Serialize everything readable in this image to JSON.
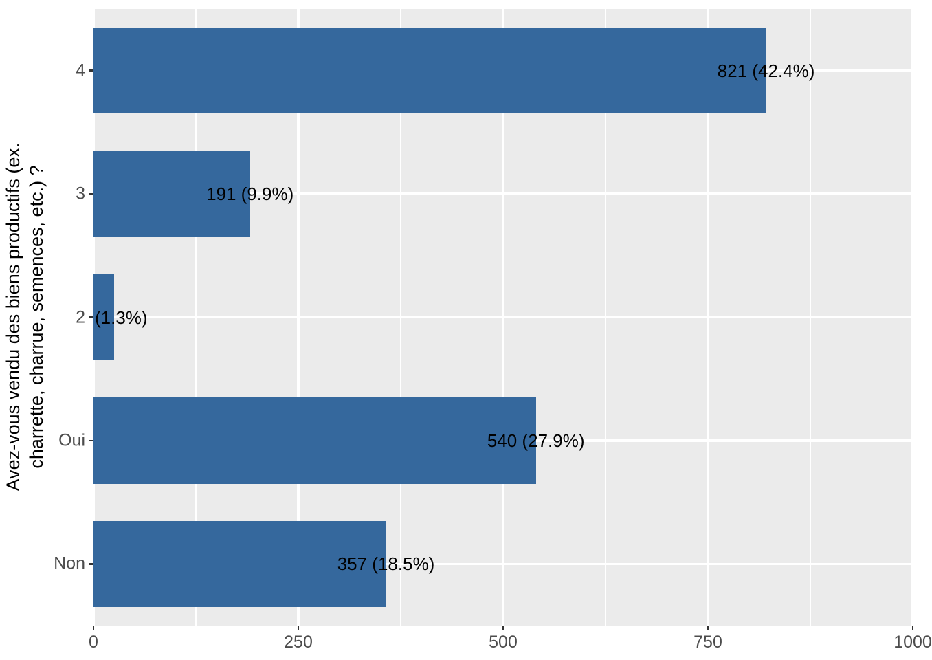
{
  "chart_data": {
    "type": "bar",
    "orientation": "horizontal",
    "title": "",
    "xlabel": "",
    "ylabel_lines": [
      "Avez-vous vendu des biens productifs (ex.",
      "charrette, charrue, semences, etc.) ?"
    ],
    "categories": [
      "4",
      "3",
      "2",
      "Oui",
      "Non"
    ],
    "values": [
      821,
      191,
      25,
      540,
      357
    ],
    "percentages": [
      42.4,
      9.9,
      1.3,
      27.9,
      18.5
    ],
    "bar_labels": [
      "821 (42.4%)",
      "191 (9.9%)",
      "(1.3%)",
      "540 (27.9%)",
      "357 (18.5%)"
    ],
    "bar_label_align": [
      "center",
      "center",
      "panel-left",
      "center",
      "center"
    ],
    "xlim": [
      0,
      1000
    ],
    "x_ticks": [
      0,
      250,
      500,
      750,
      1000
    ],
    "x_minor_ticks": [
      125,
      375,
      625,
      875
    ],
    "grid": true,
    "legend": "none",
    "colors": {
      "bar": "#35689D",
      "panel_background": "#EBEBEB",
      "grid_major": "#FFFFFF",
      "grid_minor": "#FFFFFF",
      "tick_label": "#4D4D4D",
      "tick_mark": "#333333",
      "bar_label": "#000000",
      "axis_title": "#000000"
    }
  }
}
